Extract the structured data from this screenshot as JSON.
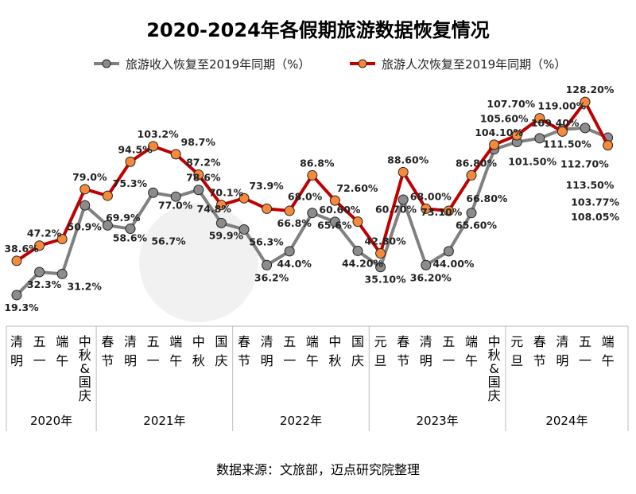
{
  "chart_data": {
    "type": "line",
    "title": "2020-2024年各假期旅游数据恢复情况",
    "source": "数据来源：文旅部，迈点研究院整理",
    "groups": [
      {
        "year": "2020年",
        "categories": [
          "清明",
          "五一",
          "端午",
          "中秋&国庆"
        ]
      },
      {
        "year": "2021年",
        "categories": [
          "春节",
          "清明",
          "五一",
          "端午",
          "中秋",
          "国庆"
        ]
      },
      {
        "year": "2022年",
        "categories": [
          "春节",
          "清明",
          "五一",
          "端午",
          "中秋",
          "国庆"
        ]
      },
      {
        "year": "2023年",
        "categories": [
          "元旦",
          "春节",
          "清明",
          "五一",
          "端午",
          "中秋&国庆"
        ]
      },
      {
        "year": "2024年",
        "categories": [
          "元旦",
          "春节",
          "清明",
          "五一",
          "端午"
        ]
      }
    ],
    "series": [
      {
        "name": "旅游收入恢复至2019年同期（%）",
        "color": "#808080",
        "marker_color": "#8c8c8c",
        "values": [
          19.3,
          32.3,
          31.2,
          69.9,
          58.6,
          56.7,
          77.0,
          74.8,
          78.6,
          59.9,
          56.3,
          36.2,
          44.0,
          65.6,
          60.6,
          44.2,
          35.1,
          73.1,
          36.2,
          44.0,
          65.6,
          101.5,
          105.6,
          107.7,
          112.7,
          113.5,
          108.05
        ],
        "labels": [
          "19.3%",
          "32.3%",
          "31.2%",
          "69.9%",
          "58.6%",
          "56.7%",
          "77.0%",
          "74.8%",
          "78.6%",
          "59.9%",
          "56.3%",
          "36.2%",
          "44.0%",
          "65.6%",
          "60.60%",
          "44.20%",
          "35.10%",
          "73.10%",
          "36.20%",
          "44.00%",
          "65.60%",
          "101.50%",
          "105.60%",
          "107.70%",
          "112.70%",
          "113.50%",
          "108.05%"
        ]
      },
      {
        "name": "旅游人次恢复至2019年同期（%）",
        "color": "#c00000",
        "marker_color": "#f58a3a",
        "values": [
          38.6,
          47.2,
          50.9,
          79.0,
          75.3,
          94.5,
          103.2,
          98.7,
          87.2,
          70.1,
          73.9,
          68.0,
          66.8,
          86.8,
          72.6,
          60.7,
          42.8,
          88.6,
          68.0,
          66.8,
          86.8,
          104.1,
          109.4,
          119.0,
          111.5,
          128.2,
          103.77
        ],
        "labels": [
          "38.6%",
          "47.2%",
          "50.9%",
          "79.0%",
          "75.3%",
          "94.5%",
          "103.2%",
          "98.7%",
          "87.2%",
          "70.1%",
          "73.9%",
          "68.0%",
          "66.8%",
          "86.8%",
          "72.60%",
          "60.70%",
          "42.80%",
          "88.60%",
          "68.00%",
          "66.80%",
          "86.80%",
          "104.10%",
          "109.40%",
          "119.00%",
          "111.50%",
          "128.20%",
          "103.77%"
        ]
      }
    ],
    "ylim": [
      0,
      135
    ],
    "grid": false,
    "legend": "top"
  }
}
